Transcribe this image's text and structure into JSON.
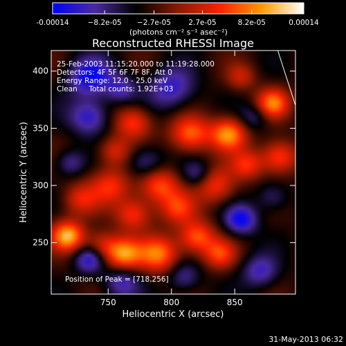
{
  "chart_data": {
    "type": "heatmap",
    "title": "Reconstructed RHESSI Image",
    "colorbar": {
      "min": -0.00014,
      "max": 0.00014,
      "tick_labels": [
        "-0.00014",
        "−8.2e-05",
        "−2.7e-05",
        "2.7e-05",
        "8.2e-05",
        "0.00014"
      ],
      "tick_values": [
        -0.00014,
        -8.2e-05,
        -2.7e-05,
        2.7e-05,
        8.2e-05,
        0.00014
      ],
      "unit_label": "(photons cm⁻² s⁻¹ asec⁻²)",
      "colors": [
        "#0000ff",
        "#4b2aa0",
        "#000000",
        "#8a1a00",
        "#ff2000",
        "#ff9a00",
        "#ffffff"
      ]
    },
    "xlabel": "Heliocentric X (arcsec)",
    "ylabel": "Heliocentric Y (arcsec)",
    "xlim": [
      705,
      898
    ],
    "ylim": [
      205,
      418
    ],
    "xticks": [
      750,
      800,
      850
    ],
    "yticks": [
      250,
      300,
      350,
      400
    ],
    "annotations": [
      "25-Feb-2003 11:15:20.000 to 11:19:28.000",
      "Detectors: 4F 5F 6F 7F 8F, Att 0",
      "Energy Range: 12.0 - 25.0 keV",
      "Clean     Total counts: 1.92E+03"
    ],
    "peak_label": "Position of Peak = [718,256]",
    "peak": [
      718,
      256
    ],
    "limb_line": {
      "x": [
        884,
        898
      ],
      "y": [
        418,
        370
      ]
    },
    "blobs": [
      {
        "x": 718,
        "y": 256,
        "v": 1.0,
        "s": 9
      },
      {
        "x": 728,
        "y": 288,
        "v": 0.5,
        "s": 10
      },
      {
        "x": 745,
        "y": 248,
        "v": 0.45,
        "s": 9
      },
      {
        "x": 752,
        "y": 300,
        "v": 0.55,
        "s": 11
      },
      {
        "x": 762,
        "y": 240,
        "v": 0.9,
        "s": 10
      },
      {
        "x": 790,
        "y": 240,
        "v": 0.8,
        "s": 11
      },
      {
        "x": 770,
        "y": 275,
        "v": 0.6,
        "s": 10
      },
      {
        "x": 790,
        "y": 300,
        "v": 0.7,
        "s": 11
      },
      {
        "x": 805,
        "y": 280,
        "v": 0.55,
        "s": 10
      },
      {
        "x": 820,
        "y": 255,
        "v": 0.75,
        "s": 10
      },
      {
        "x": 838,
        "y": 240,
        "v": 0.6,
        "s": 9
      },
      {
        "x": 770,
        "y": 355,
        "v": 0.65,
        "s": 10
      },
      {
        "x": 755,
        "y": 330,
        "v": 0.5,
        "s": 9
      },
      {
        "x": 815,
        "y": 345,
        "v": 0.75,
        "s": 11
      },
      {
        "x": 845,
        "y": 345,
        "v": 0.9,
        "s": 10
      },
      {
        "x": 835,
        "y": 300,
        "v": 0.6,
        "s": 11
      },
      {
        "x": 860,
        "y": 318,
        "v": 0.55,
        "s": 9
      },
      {
        "x": 885,
        "y": 325,
        "v": 0.7,
        "s": 10
      },
      {
        "x": 880,
        "y": 372,
        "v": 0.8,
        "s": 9
      },
      {
        "x": 855,
        "y": 395,
        "v": 0.4,
        "s": 8
      },
      {
        "x": 735,
        "y": 235,
        "v": -0.6,
        "s": 8
      },
      {
        "x": 735,
        "y": 360,
        "v": -0.6,
        "s": 11
      },
      {
        "x": 735,
        "y": 395,
        "v": -0.7,
        "s": 12
      },
      {
        "x": 800,
        "y": 385,
        "v": -0.55,
        "s": 13
      },
      {
        "x": 780,
        "y": 320,
        "v": -0.45,
        "s": 10
      },
      {
        "x": 820,
        "y": 310,
        "v": -0.4,
        "s": 8
      },
      {
        "x": 855,
        "y": 270,
        "v": -0.7,
        "s": 9
      },
      {
        "x": 870,
        "y": 225,
        "v": -0.5,
        "s": 10
      },
      {
        "x": 760,
        "y": 215,
        "v": -0.5,
        "s": 10
      },
      {
        "x": 810,
        "y": 220,
        "v": -0.4,
        "s": 9
      },
      {
        "x": 880,
        "y": 290,
        "v": -0.35,
        "s": 9
      },
      {
        "x": 865,
        "y": 360,
        "v": -0.35,
        "s": 8
      },
      {
        "x": 720,
        "y": 320,
        "v": -0.4,
        "s": 8
      },
      {
        "x": 760,
        "y": 385,
        "v": -0.45,
        "s": 9
      }
    ]
  },
  "footer": {
    "timestamp": "31-May-2013 06:32"
  }
}
